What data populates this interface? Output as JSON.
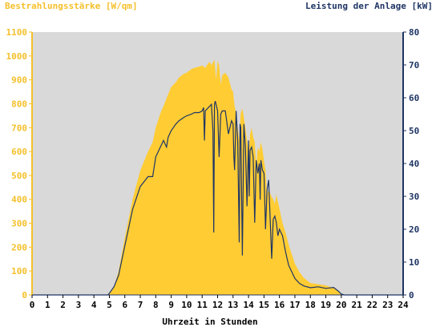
{
  "chart_data": {
    "type": "area",
    "title": "",
    "left_axis_label": "Bestrahlungsstärke [W/qm]",
    "right_axis_label": "Leistung der Anlage [kW]",
    "xlabel": "Uhrzeit in Stunden",
    "xlim": [
      0,
      24
    ],
    "x_ticks": [
      "0",
      "1",
      "2",
      "3",
      "4",
      "5",
      "6",
      "7",
      "8",
      "9",
      "10",
      "11",
      "12",
      "13",
      "14",
      "15",
      "16",
      "17",
      "18",
      "19",
      "20",
      "21",
      "22",
      "23",
      "24"
    ],
    "ylim_left": [
      0,
      1100
    ],
    "y_ticks_left": [
      "0",
      "100",
      "200",
      "300",
      "400",
      "500",
      "600",
      "700",
      "800",
      "900",
      "1000",
      "1100"
    ],
    "ylim_right": [
      0,
      80
    ],
    "y_ticks_right": [
      "0",
      "10",
      "20",
      "30",
      "40",
      "50",
      "60",
      "70",
      "80"
    ],
    "grid": false,
    "colors": {
      "plot_background": "#d9d9d9",
      "irradiance_fill": "#ffcc33",
      "irradiance_axis": "#f5c02b",
      "power_line": "#1f3565"
    },
    "series": [
      {
        "axis": "left",
        "style": "area",
        "x": [
          0,
          4.9,
          5.0,
          5.3,
          5.6,
          6.0,
          6.5,
          7.0,
          7.5,
          7.8,
          8.0,
          8.3,
          8.5,
          8.8,
          9.0,
          9.3,
          9.5,
          9.8,
          10.0,
          10.3,
          10.5,
          10.8,
          11.0,
          11.2,
          11.4,
          11.5,
          11.6,
          11.8,
          11.9,
          12.0,
          12.1,
          12.2,
          12.3,
          12.5,
          12.7,
          12.9,
          13.0,
          13.1,
          13.2,
          13.3,
          13.4,
          13.5,
          13.6,
          13.7,
          13.8,
          13.9,
          14.0,
          14.1,
          14.2,
          14.3,
          14.4,
          14.5,
          14.6,
          14.7,
          14.8,
          14.9,
          15.0,
          15.1,
          15.2,
          15.3,
          15.5,
          15.6,
          15.7,
          15.8,
          15.9,
          16.0,
          16.2,
          16.4,
          16.6,
          16.8,
          17.0,
          17.3,
          17.6,
          18.0,
          18.5,
          19.0,
          19.5,
          19.8,
          20.0,
          20.2,
          24
        ],
        "y": [
          0,
          0,
          5,
          35,
          100,
          240,
          400,
          520,
          600,
          640,
          700,
          760,
          790,
          840,
          870,
          890,
          910,
          925,
          930,
          945,
          950,
          955,
          960,
          950,
          970,
          975,
          960,
          985,
          900,
          980,
          960,
          880,
          920,
          930,
          910,
          860,
          850,
          790,
          760,
          700,
          650,
          760,
          780,
          740,
          700,
          650,
          590,
          670,
          700,
          660,
          640,
          540,
          620,
          600,
          640,
          610,
          560,
          520,
          420,
          440,
          410,
          400,
          380,
          420,
          390,
          360,
          300,
          260,
          210,
          170,
          130,
          95,
          70,
          50,
          45,
          40,
          30,
          15,
          5,
          0,
          0
        ]
      },
      {
        "axis": "right",
        "style": "line",
        "x": [
          0,
          4.9,
          5.0,
          5.3,
          5.6,
          6.0,
          6.5,
          7.0,
          7.5,
          7.8,
          8.0,
          8.3,
          8.5,
          8.7,
          8.8,
          9.0,
          9.3,
          9.5,
          9.8,
          10.0,
          10.3,
          10.5,
          10.8,
          11.0,
          11.1,
          11.15,
          11.2,
          11.4,
          11.6,
          11.7,
          11.75,
          11.8,
          11.85,
          11.9,
          12.0,
          12.1,
          12.2,
          12.3,
          12.5,
          12.7,
          12.9,
          13.0,
          13.05,
          13.1,
          13.2,
          13.3,
          13.4,
          13.45,
          13.5,
          13.6,
          13.7,
          13.8,
          13.9,
          14.0,
          14.05,
          14.1,
          14.2,
          14.3,
          14.4,
          14.5,
          14.6,
          14.7,
          14.75,
          14.8,
          14.9,
          15.0,
          15.1,
          15.2,
          15.3,
          15.5,
          15.6,
          15.7,
          15.8,
          15.9,
          16.0,
          16.2,
          16.4,
          16.6,
          16.8,
          17.0,
          17.3,
          17.6,
          18.0,
          18.5,
          19.0,
          19.5,
          19.8,
          20.0,
          20.2,
          24
        ],
        "y": [
          0,
          0,
          0.5,
          2.5,
          6,
          15,
          26,
          33,
          36,
          36,
          42,
          45,
          47,
          45,
          48,
          50,
          52,
          53,
          54,
          54.5,
          55,
          55.5,
          55.5,
          56,
          57,
          47,
          56,
          57,
          58,
          50,
          19,
          58,
          59,
          58,
          56,
          42,
          55,
          56,
          56,
          49,
          53,
          52,
          42,
          38,
          56,
          47,
          16,
          52,
          51,
          12,
          52,
          45,
          27,
          47,
          30,
          44,
          45,
          42,
          22,
          41,
          37,
          40,
          29,
          41,
          38,
          37,
          20,
          32,
          35,
          11,
          23,
          24,
          22,
          18,
          20,
          18,
          13,
          9,
          7,
          5,
          3.5,
          2.7,
          2.2,
          2.5,
          2,
          2.3,
          1.2,
          0.3,
          0,
          0
        ]
      }
    ]
  }
}
